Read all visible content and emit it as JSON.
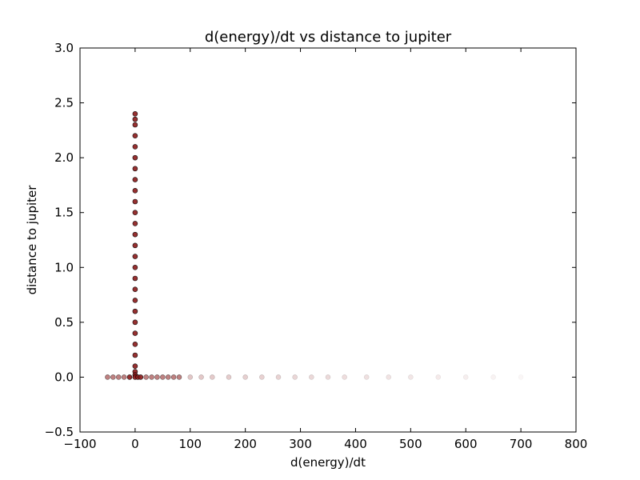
{
  "chart_data": {
    "type": "scatter",
    "title": "d(energy)/dt vs distance to jupiter",
    "xlabel": "d(energy)/dt",
    "ylabel": "distance to jupiter",
    "xlim": [
      -100,
      800
    ],
    "ylim": [
      -0.5,
      3.0
    ],
    "xticks": [
      -100,
      0,
      100,
      200,
      300,
      400,
      500,
      600,
      700,
      800
    ],
    "xtick_labels": [
      "−100",
      "0",
      "100",
      "200",
      "300",
      "400",
      "500",
      "600",
      "700",
      "800"
    ],
    "yticks": [
      -0.5,
      0.0,
      0.5,
      1.0,
      1.5,
      2.0,
      2.5,
      3.0
    ],
    "ytick_labels": [
      "−0.5",
      "0.0",
      "0.5",
      "1.0",
      "1.5",
      "2.0",
      "2.5",
      "3.0"
    ],
    "grid": false,
    "marker_color": "#8b1a1a",
    "edge_color": "#000000",
    "series": [
      {
        "points": [
          {
            "x": 0,
            "y": 2.4
          },
          {
            "x": 0,
            "y": 2.35
          },
          {
            "x": 0,
            "y": 2.3
          },
          {
            "x": 0,
            "y": 2.2
          },
          {
            "x": 0,
            "y": 2.1
          },
          {
            "x": 0,
            "y": 2.0
          },
          {
            "x": 0,
            "y": 1.9
          },
          {
            "x": 0,
            "y": 1.8
          },
          {
            "x": 0,
            "y": 1.7
          },
          {
            "x": 0,
            "y": 1.6
          },
          {
            "x": 0,
            "y": 1.5
          },
          {
            "x": 0,
            "y": 1.4
          },
          {
            "x": 0,
            "y": 1.3
          },
          {
            "x": 0,
            "y": 1.2
          },
          {
            "x": 0,
            "y": 1.1
          },
          {
            "x": 0,
            "y": 1.0
          },
          {
            "x": 0,
            "y": 0.9
          },
          {
            "x": 0,
            "y": 0.8
          },
          {
            "x": 0,
            "y": 0.7
          },
          {
            "x": 0,
            "y": 0.6
          },
          {
            "x": 0,
            "y": 0.5
          },
          {
            "x": 0,
            "y": 0.4
          },
          {
            "x": 0,
            "y": 0.3
          },
          {
            "x": 0,
            "y": 0.2
          },
          {
            "x": 0,
            "y": 0.1
          },
          {
            "x": 0,
            "y": 0.05
          },
          {
            "x": 0,
            "y": 0.02
          },
          {
            "x": 0,
            "y": 0.0
          },
          {
            "x": -50,
            "y": 0.0
          },
          {
            "x": -40,
            "y": 0.0
          },
          {
            "x": -30,
            "y": 0.0
          },
          {
            "x": -20,
            "y": 0.0
          },
          {
            "x": -10,
            "y": 0.0
          },
          {
            "x": 5,
            "y": 0.0
          },
          {
            "x": 10,
            "y": 0.0
          },
          {
            "x": 20,
            "y": 0.0
          },
          {
            "x": 30,
            "y": 0.0
          },
          {
            "x": 40,
            "y": 0.0
          },
          {
            "x": 50,
            "y": 0.0
          },
          {
            "x": 60,
            "y": 0.0
          },
          {
            "x": 70,
            "y": 0.0
          },
          {
            "x": 80,
            "y": 0.0
          },
          {
            "x": 100,
            "y": 0.0
          },
          {
            "x": 120,
            "y": 0.0
          },
          {
            "x": 140,
            "y": 0.0
          },
          {
            "x": 170,
            "y": 0.0
          },
          {
            "x": 200,
            "y": 0.0
          },
          {
            "x": 230,
            "y": 0.0
          },
          {
            "x": 260,
            "y": 0.0
          },
          {
            "x": 290,
            "y": 0.0
          },
          {
            "x": 320,
            "y": 0.0
          },
          {
            "x": 350,
            "y": 0.0
          },
          {
            "x": 380,
            "y": 0.0
          },
          {
            "x": 420,
            "y": 0.0
          },
          {
            "x": 460,
            "y": 0.0
          },
          {
            "x": 500,
            "y": 0.0
          },
          {
            "x": 550,
            "y": 0.0
          },
          {
            "x": 600,
            "y": 0.0
          },
          {
            "x": 650,
            "y": 0.0
          },
          {
            "x": 700,
            "y": 0.0
          }
        ]
      }
    ]
  }
}
